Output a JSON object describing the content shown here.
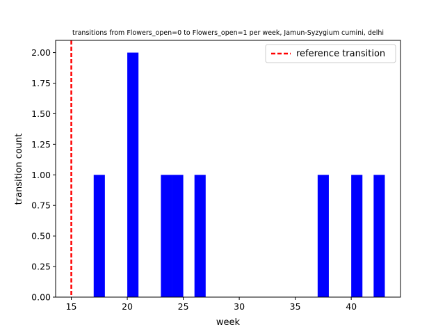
{
  "chart_data": {
    "type": "bar",
    "title": "transitions from Flowers_open=0 to Flowers_open=1 per week, Jamun-Syzygium cumini, delhi",
    "xlabel": "week",
    "ylabel": "transition count",
    "xlim": [
      13.6,
      44.4
    ],
    "ylim": [
      0,
      2.1
    ],
    "xticks": [
      15,
      20,
      25,
      30,
      35,
      40
    ],
    "xtick_labels": [
      "15",
      "20",
      "25",
      "30",
      "35",
      "40"
    ],
    "yticks": [
      0,
      0.25,
      0.5,
      0.75,
      1.0,
      1.25,
      1.5,
      1.75,
      2.0
    ],
    "ytick_labels": [
      "0.00",
      "0.25",
      "0.50",
      "0.75",
      "1.00",
      "1.25",
      "1.50",
      "1.75",
      "2.00"
    ],
    "bar_width": 1,
    "bars": [
      {
        "week": 17,
        "count": 1
      },
      {
        "week": 20,
        "count": 2
      },
      {
        "week": 23,
        "count": 1
      },
      {
        "week": 24,
        "count": 1
      },
      {
        "week": 26,
        "count": 1
      },
      {
        "week": 37,
        "count": 1
      },
      {
        "week": 40,
        "count": 1
      },
      {
        "week": 42,
        "count": 1
      }
    ],
    "bar_color": "#0000ff",
    "reference_line": {
      "x": 15,
      "label": "reference transition",
      "color": "#ff0000",
      "style": "dashed"
    },
    "legend_position": "top-right",
    "grid": false
  }
}
